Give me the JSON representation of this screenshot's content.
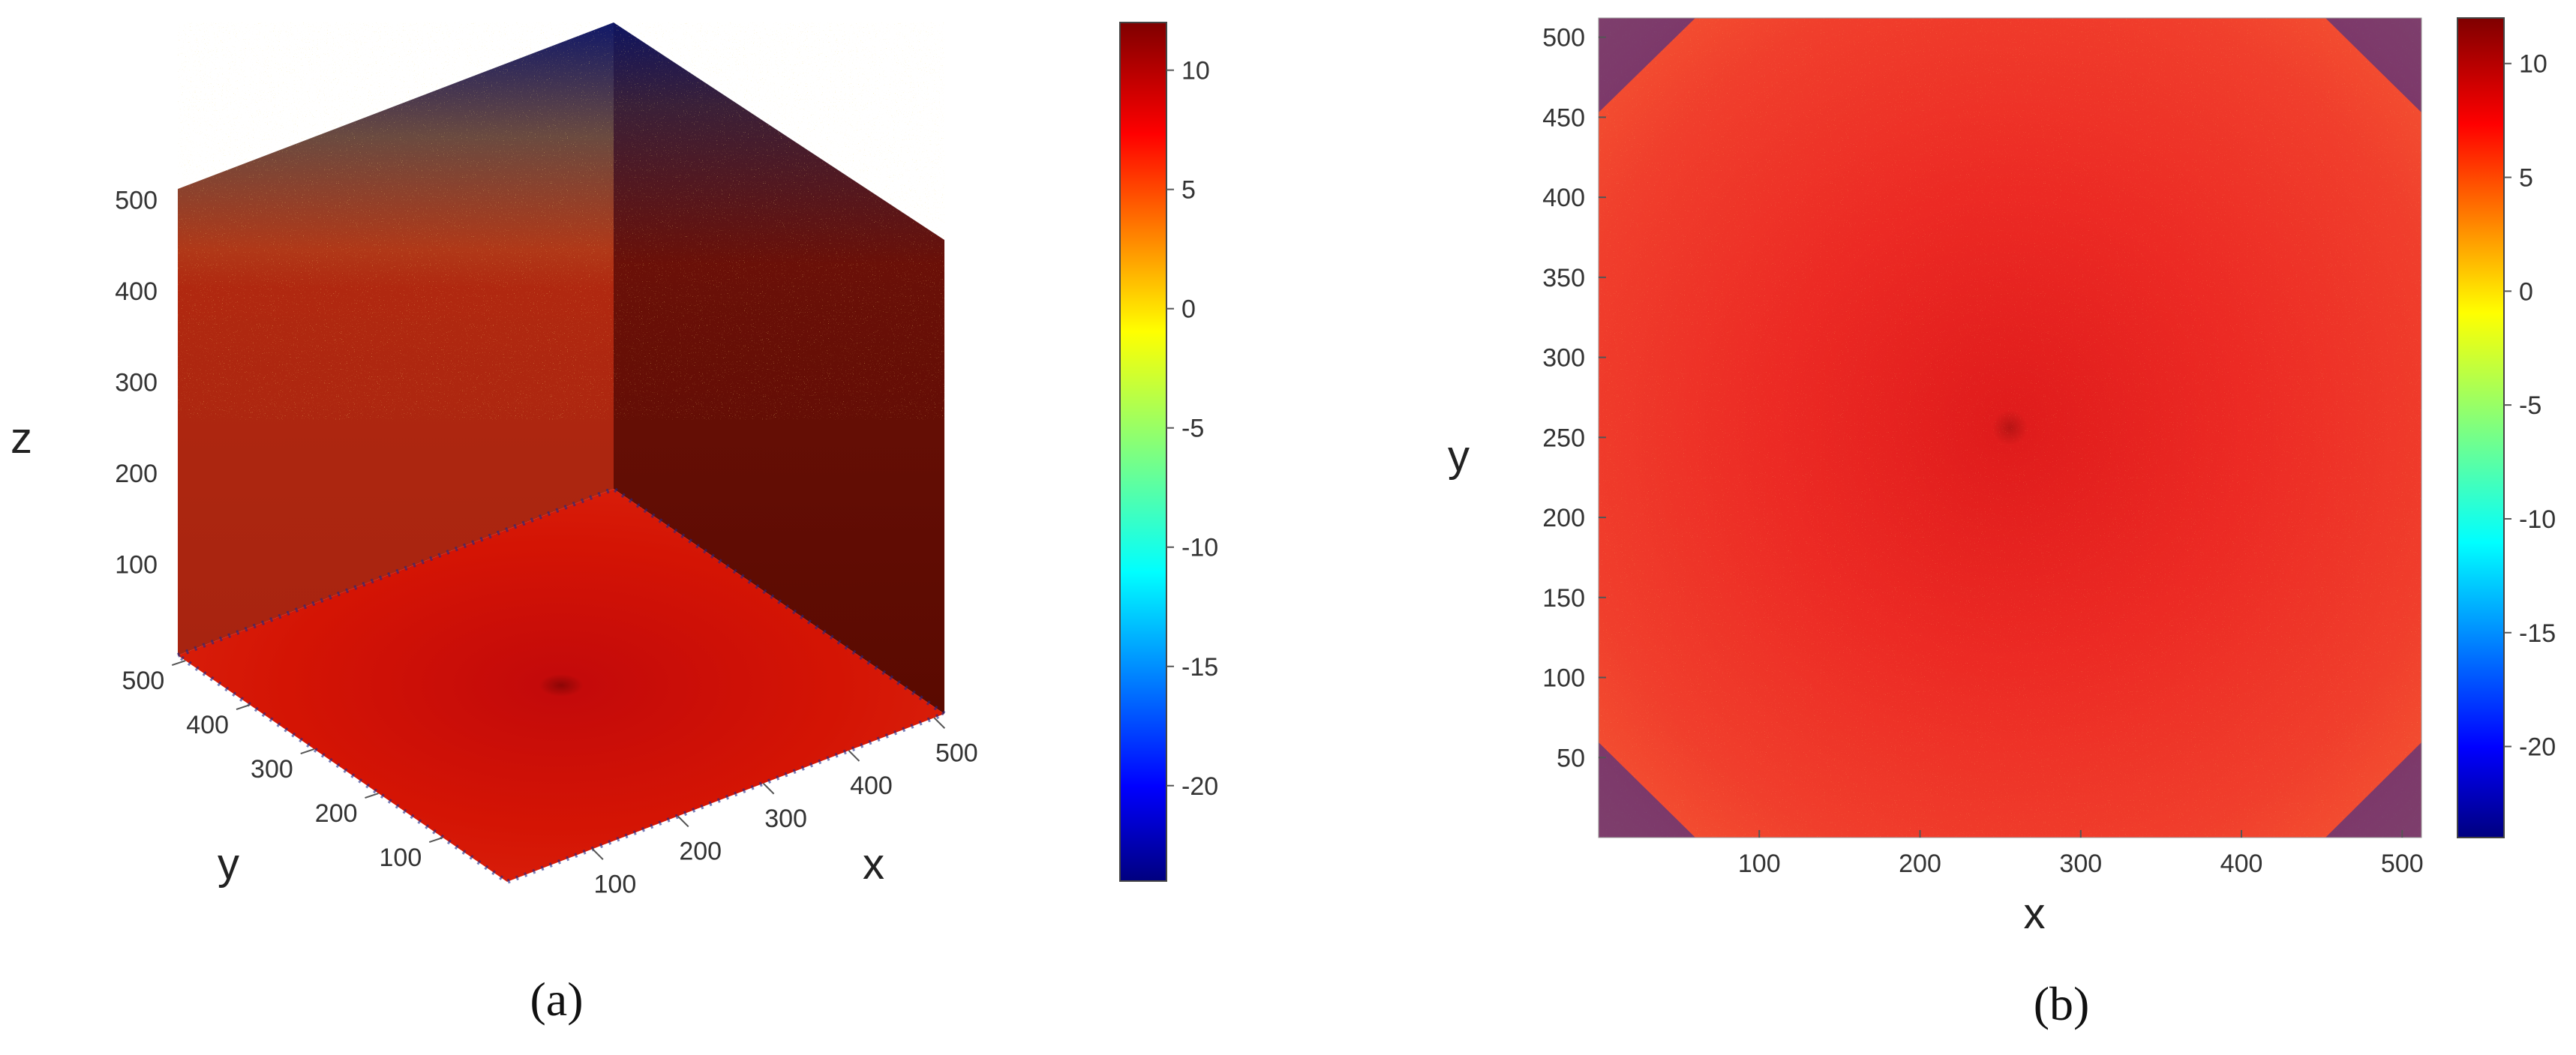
{
  "chart_data": [
    {
      "type": "heatmap",
      "title": "",
      "caption": "(a)",
      "view": "3d-slice",
      "xlabel": "x",
      "ylabel": "y",
      "zlabel": "z",
      "xlim": [
        0,
        512
      ],
      "ylim": [
        0,
        512
      ],
      "zlim": [
        0,
        512
      ],
      "xticks": [
        100,
        200,
        300,
        400,
        500
      ],
      "yticks": [
        100,
        200,
        300,
        400,
        500
      ],
      "zticks": [
        100,
        200,
        300,
        400,
        500
      ],
      "center": [
        256,
        256
      ],
      "faces": {
        "bottom": {
          "center_value": 12,
          "edge_value": 9,
          "noise": "sparse at edges"
        },
        "back_left": {
          "lower_value": 9,
          "upper_value": -23,
          "transition_z": 330
        },
        "back_right": {
          "lower_value": 12,
          "upper_value": -23,
          "transition_z": 340
        }
      },
      "colorbar": {
        "min": -24,
        "max": 12,
        "ticks": [
          10,
          5,
          0,
          -5,
          -10,
          -15,
          -20
        ],
        "colormap": "jet"
      },
      "grid": false
    },
    {
      "type": "heatmap",
      "title": "",
      "caption": "(b)",
      "view": "2d-slice",
      "xlabel": "x",
      "ylabel": "y",
      "xlim": [
        0,
        512
      ],
      "ylim": [
        0,
        512
      ],
      "xticks": [
        100,
        200,
        300,
        400,
        500
      ],
      "yticks": [
        50,
        100,
        150,
        200,
        250,
        300,
        350,
        400,
        450,
        500
      ],
      "center": [
        256,
        256
      ],
      "center_value": 12,
      "edge_value": 9,
      "colorbar": {
        "min": -24,
        "max": 12,
        "ticks": [
          10,
          5,
          0,
          -5,
          -10,
          -15,
          -20
        ],
        "colormap": "jet"
      },
      "grid": false
    }
  ]
}
